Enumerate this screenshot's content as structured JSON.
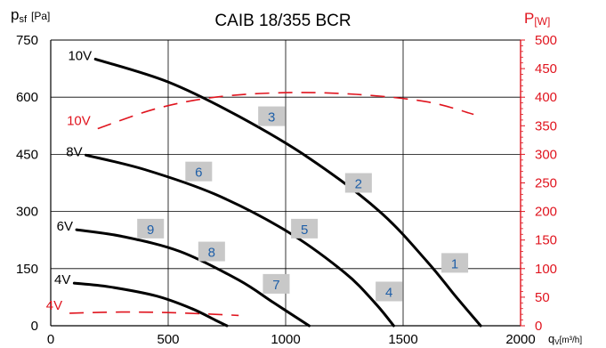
{
  "chart_data": {
    "type": "line",
    "title": "CAIB 18/355 BCR",
    "x_axis": {
      "label_main": "q",
      "label_sub": "V",
      "label_unit": "[m³/h]",
      "ticks": [
        0,
        500,
        1000,
        1500,
        2000
      ],
      "range": [
        0,
        2000
      ]
    },
    "y_left": {
      "label_main": "p",
      "label_sub": "sf",
      "label_unit": "[Pa]",
      "ticks": [
        0,
        150,
        300,
        450,
        600,
        750
      ],
      "range": [
        0,
        750
      ]
    },
    "y_right": {
      "label_main": "P",
      "label_unit": "[W]",
      "ticks": [
        0,
        50,
        100,
        150,
        200,
        250,
        300,
        350,
        400,
        450,
        500
      ],
      "range": [
        0,
        500
      ],
      "color": "#e0141e"
    },
    "grid": true,
    "pressure_series": [
      {
        "name": "10V",
        "points": [
          [
            190,
            700
          ],
          [
            500,
            640
          ],
          [
            800,
            550
          ],
          [
            1100,
            440
          ],
          [
            1400,
            300
          ],
          [
            1600,
            170
          ],
          [
            1720,
            80
          ],
          [
            1830,
            0
          ]
        ]
      },
      {
        "name": "8V",
        "points": [
          [
            150,
            448
          ],
          [
            400,
            410
          ],
          [
            700,
            345
          ],
          [
            1000,
            250
          ],
          [
            1250,
            140
          ],
          [
            1380,
            60
          ],
          [
            1460,
            0
          ]
        ]
      },
      {
        "name": "6V",
        "points": [
          [
            110,
            252
          ],
          [
            300,
            235
          ],
          [
            550,
            195
          ],
          [
            800,
            120
          ],
          [
            950,
            60
          ],
          [
            1100,
            0
          ]
        ]
      },
      {
        "name": "4V",
        "points": [
          [
            100,
            112
          ],
          [
            250,
            102
          ],
          [
            450,
            78
          ],
          [
            600,
            45
          ],
          [
            700,
            15
          ],
          [
            750,
            0
          ]
        ]
      }
    ],
    "power_series": [
      {
        "name": "10V",
        "axis": "right",
        "style": "dashed",
        "points": [
          [
            200,
            345
          ],
          [
            450,
            380
          ],
          [
            700,
            400
          ],
          [
            1000,
            408
          ],
          [
            1300,
            405
          ],
          [
            1600,
            392
          ],
          [
            1800,
            370
          ]
        ]
      },
      {
        "name": "4V",
        "axis": "right",
        "style": "dashed",
        "points": [
          [
            80,
            22
          ],
          [
            300,
            24
          ],
          [
            500,
            23
          ],
          [
            700,
            20
          ],
          [
            800,
            18
          ]
        ]
      }
    ],
    "zone_labels": [
      {
        "text": "1",
        "x": 1720,
        "y": 165
      },
      {
        "text": "2",
        "x": 1310,
        "y": 375
      },
      {
        "text": "3",
        "x": 940,
        "y": 550
      },
      {
        "text": "4",
        "x": 1440,
        "y": 90
      },
      {
        "text": "5",
        "x": 1080,
        "y": 255
      },
      {
        "text": "6",
        "x": 630,
        "y": 405
      },
      {
        "text": "7",
        "x": 960,
        "y": 110
      },
      {
        "text": "8",
        "x": 685,
        "y": 195
      },
      {
        "text": "9",
        "x": 425,
        "y": 255
      }
    ],
    "colors": {
      "pressure": "#000000",
      "power": "#e0141e",
      "zone_box": "#c8c8c8",
      "zone_text": "#1f5fa8",
      "grid": "#000000"
    }
  }
}
